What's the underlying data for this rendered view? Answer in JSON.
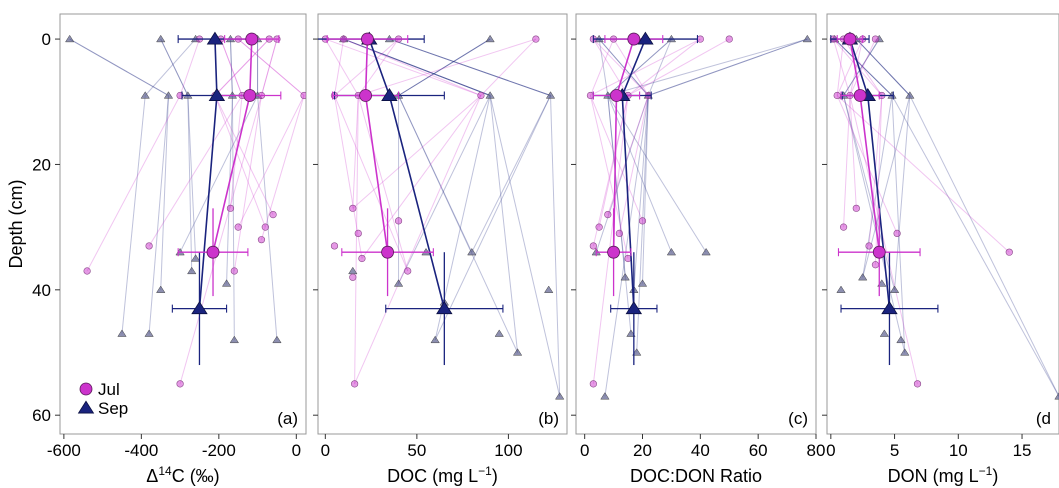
{
  "colors": {
    "jul": "#cc33cc",
    "sep": "#1a237e",
    "frame": "#999999"
  },
  "legend": {
    "position": "bottom-left",
    "items": [
      {
        "label": "Jul",
        "marker": "circle",
        "color": "#cc33cc"
      },
      {
        "label": "Sep",
        "marker": "triangle",
        "color": "#1a237e"
      }
    ]
  },
  "chart_data": [
    {
      "type": "scatter",
      "panel_label": "(a)",
      "xlabel_main": "Δ",
      "xlabel_sup": "14",
      "xlabel_rest": "C (‰)",
      "ylabel": "Depth (cm)",
      "xlim": [
        -610,
        25
      ],
      "ylim": [
        63,
        -4
      ],
      "xticks": [
        {
          "v": -600,
          "t": "-600"
        },
        {
          "v": -400,
          "t": "-400"
        },
        {
          "v": -200,
          "t": "-200"
        },
        {
          "v": 0,
          "t": "0"
        }
      ],
      "yticks": [
        {
          "v": 0,
          "t": "0"
        },
        {
          "v": 20,
          "t": "20"
        },
        {
          "v": 40,
          "t": "40"
        },
        {
          "v": 60,
          "t": "60"
        }
      ],
      "show_yticks": true,
      "jul_mean": [
        {
          "x": -115,
          "y": 0,
          "xerr": 70,
          "yerr": 0
        },
        {
          "x": -120,
          "y": 9,
          "xerr": 80,
          "yerr": 0
        },
        {
          "x": -215,
          "y": 34,
          "xerr": 90,
          "yerr": 7
        }
      ],
      "sep_mean": [
        {
          "x": -210,
          "y": 0,
          "xerr": 95,
          "yerr": 0
        },
        {
          "x": -205,
          "y": 9,
          "xerr": 90,
          "yerr": 0
        },
        {
          "x": -250,
          "y": 43,
          "xerr": 70,
          "yerr": 9
        }
      ],
      "jul_points": [
        {
          "x": -195,
          "y": 0
        },
        {
          "x": -150,
          "y": 0
        },
        {
          "x": -70,
          "y": 0
        },
        {
          "x": -50,
          "y": 0
        },
        {
          "x": -250,
          "y": 0
        },
        {
          "x": -300,
          "y": 9
        },
        {
          "x": -140,
          "y": 9
        },
        {
          "x": 20,
          "y": 9
        },
        {
          "x": -210,
          "y": 9
        },
        {
          "x": -90,
          "y": 9
        },
        {
          "x": -540,
          "y": 37
        },
        {
          "x": -380,
          "y": 33
        },
        {
          "x": -170,
          "y": 27
        },
        {
          "x": -150,
          "y": 30
        },
        {
          "x": -90,
          "y": 32
        },
        {
          "x": -80,
          "y": 30
        },
        {
          "x": -60,
          "y": 28
        },
        {
          "x": -300,
          "y": 55
        },
        {
          "x": -160,
          "y": 37
        }
      ],
      "sep_points": [
        {
          "x": -585,
          "y": 0
        },
        {
          "x": -350,
          "y": 0
        },
        {
          "x": -170,
          "y": 0
        },
        {
          "x": -100,
          "y": 0
        },
        {
          "x": -260,
          "y": 0
        },
        {
          "x": -390,
          "y": 9
        },
        {
          "x": -330,
          "y": 9
        },
        {
          "x": -280,
          "y": 9
        },
        {
          "x": -165,
          "y": 9
        },
        {
          "x": -100,
          "y": 9
        },
        {
          "x": -450,
          "y": 47
        },
        {
          "x": -380,
          "y": 47
        },
        {
          "x": -350,
          "y": 40
        },
        {
          "x": -270,
          "y": 37
        },
        {
          "x": -260,
          "y": 35
        },
        {
          "x": -180,
          "y": 39
        },
        {
          "x": -160,
          "y": 48
        },
        {
          "x": -50,
          "y": 48
        },
        {
          "x": -300,
          "y": 34
        }
      ]
    },
    {
      "type": "scatter",
      "panel_label": "(b)",
      "xlabel_main": "DOC (mg L",
      "xlabel_sup": "−1",
      "xlabel_rest": ")",
      "xlim": [
        -4,
        132
      ],
      "ylim": [
        63,
        -4
      ],
      "xticks": [
        {
          "v": 0,
          "t": "0"
        },
        {
          "v": 50,
          "t": "50"
        },
        {
          "v": 100,
          "t": "100"
        }
      ],
      "yticks": [
        {
          "v": 0,
          "t": ""
        },
        {
          "v": 20,
          "t": ""
        },
        {
          "v": 40,
          "t": ""
        },
        {
          "v": 60,
          "t": ""
        }
      ],
      "show_yticks": true,
      "jul_mean": [
        {
          "x": 23,
          "y": 0,
          "xerr": 22,
          "yerr": 0
        },
        {
          "x": 22,
          "y": 9,
          "xerr": 18,
          "yerr": 0
        },
        {
          "x": 34,
          "y": 34,
          "xerr": 25,
          "yerr": 7
        }
      ],
      "sep_mean": [
        {
          "x": 24,
          "y": 0,
          "xerr": 30,
          "yerr": 0
        },
        {
          "x": 35,
          "y": 9,
          "xerr": 30,
          "yerr": 0
        },
        {
          "x": 65,
          "y": 43,
          "xerr": 32,
          "yerr": 9
        }
      ],
      "jul_points": [
        {
          "x": 0,
          "y": 0
        },
        {
          "x": 10,
          "y": 0
        },
        {
          "x": 40,
          "y": 0
        },
        {
          "x": 115,
          "y": 0
        },
        {
          "x": 5,
          "y": 9
        },
        {
          "x": 18,
          "y": 9
        },
        {
          "x": 85,
          "y": 9
        },
        {
          "x": 5,
          "y": 33
        },
        {
          "x": 15,
          "y": 27
        },
        {
          "x": 18,
          "y": 31
        },
        {
          "x": 20,
          "y": 35
        },
        {
          "x": 40,
          "y": 29
        },
        {
          "x": 45,
          "y": 37
        },
        {
          "x": 15,
          "y": 38
        },
        {
          "x": 16,
          "y": 55
        }
      ],
      "sep_points": [
        {
          "x": 10,
          "y": 0
        },
        {
          "x": 35,
          "y": 0
        },
        {
          "x": 90,
          "y": 0
        },
        {
          "x": 40,
          "y": 9
        },
        {
          "x": 90,
          "y": 9
        },
        {
          "x": 123,
          "y": 9
        },
        {
          "x": 15,
          "y": 37
        },
        {
          "x": 40,
          "y": 39
        },
        {
          "x": 55,
          "y": 34
        },
        {
          "x": 60,
          "y": 48
        },
        {
          "x": 65,
          "y": 42
        },
        {
          "x": 80,
          "y": 34
        },
        {
          "x": 95,
          "y": 47
        },
        {
          "x": 105,
          "y": 50
        },
        {
          "x": 122,
          "y": 40
        },
        {
          "x": 128,
          "y": 57
        }
      ]
    },
    {
      "type": "scatter",
      "panel_label": "(c)",
      "xlabel_main": "DOC:DON Ratio",
      "xlabel_sup": "",
      "xlabel_rest": "",
      "xlim": [
        -3,
        80
      ],
      "ylim": [
        63,
        -4
      ],
      "xticks": [
        {
          "v": 0,
          "t": "0"
        },
        {
          "v": 20,
          "t": "20"
        },
        {
          "v": 40,
          "t": "40"
        },
        {
          "v": 60,
          "t": "60"
        },
        {
          "v": 80,
          "t": "80"
        }
      ],
      "yticks": [
        {
          "v": 0,
          "t": ""
        },
        {
          "v": 20,
          "t": ""
        },
        {
          "v": 40,
          "t": ""
        },
        {
          "v": 60,
          "t": ""
        }
      ],
      "show_yticks": true,
      "jul_mean": [
        {
          "x": 17,
          "y": 0,
          "xerr": 10,
          "yerr": 0
        },
        {
          "x": 11,
          "y": 9,
          "xerr": 8,
          "yerr": 0
        },
        {
          "x": 10,
          "y": 34,
          "xerr": 6,
          "yerr": 7
        }
      ],
      "sep_mean": [
        {
          "x": 21,
          "y": 0,
          "xerr": 18,
          "yerr": 0
        },
        {
          "x": 13,
          "y": 9,
          "xerr": 10,
          "yerr": 0
        },
        {
          "x": 17,
          "y": 43,
          "xerr": 8,
          "yerr": 9
        }
      ],
      "jul_points": [
        {
          "x": 3,
          "y": 0
        },
        {
          "x": 10,
          "y": 0
        },
        {
          "x": 40,
          "y": 0
        },
        {
          "x": 50,
          "y": 0
        },
        {
          "x": 2,
          "y": 9
        },
        {
          "x": 15,
          "y": 9
        },
        {
          "x": 22,
          "y": 9
        },
        {
          "x": 3,
          "y": 33
        },
        {
          "x": 5,
          "y": 30
        },
        {
          "x": 8,
          "y": 28
        },
        {
          "x": 12,
          "y": 31
        },
        {
          "x": 15,
          "y": 35
        },
        {
          "x": 20,
          "y": 29
        },
        {
          "x": 3,
          "y": 55
        }
      ],
      "sep_points": [
        {
          "x": 5,
          "y": 0
        },
        {
          "x": 30,
          "y": 0
        },
        {
          "x": 77,
          "y": 0
        },
        {
          "x": 8,
          "y": 9
        },
        {
          "x": 22,
          "y": 9
        },
        {
          "x": 4,
          "y": 34
        },
        {
          "x": 7,
          "y": 57
        },
        {
          "x": 14,
          "y": 38
        },
        {
          "x": 16,
          "y": 47
        },
        {
          "x": 17,
          "y": 40
        },
        {
          "x": 20,
          "y": 39
        },
        {
          "x": 30,
          "y": 34
        },
        {
          "x": 42,
          "y": 34
        },
        {
          "x": 18,
          "y": 50
        }
      ]
    },
    {
      "type": "scatter",
      "panel_label": "(d",
      "xlabel_main": "DON (mg L",
      "xlabel_sup": "−1",
      "xlabel_rest": ")",
      "xlim": [
        -0.3,
        17.9
      ],
      "ylim": [
        63,
        -4
      ],
      "xticks": [
        {
          "v": 0,
          "t": "0"
        },
        {
          "v": 5,
          "t": "5"
        },
        {
          "v": 10,
          "t": "10"
        },
        {
          "v": 15,
          "t": "15"
        }
      ],
      "yticks": [
        {
          "v": 0,
          "t": ""
        },
        {
          "v": 20,
          "t": ""
        },
        {
          "v": 40,
          "t": ""
        },
        {
          "v": 60,
          "t": ""
        }
      ],
      "show_yticks": true,
      "jul_mean": [
        {
          "x": 1.5,
          "y": 0,
          "xerr": 1.0,
          "yerr": 0
        },
        {
          "x": 2.3,
          "y": 9,
          "xerr": 1.5,
          "yerr": 0
        },
        {
          "x": 3.8,
          "y": 34,
          "xerr": 3.2,
          "yerr": 7
        }
      ],
      "sep_mean": [
        {
          "x": 1.5,
          "y": 0,
          "xerr": 1.5,
          "yerr": 0
        },
        {
          "x": 2.9,
          "y": 9,
          "xerr": 2.0,
          "yerr": 0
        },
        {
          "x": 4.6,
          "y": 43,
          "xerr": 3.8,
          "yerr": 9
        }
      ],
      "jul_points": [
        {
          "x": 0.2,
          "y": 0
        },
        {
          "x": 1.0,
          "y": 0
        },
        {
          "x": 2.5,
          "y": 0
        },
        {
          "x": 3.5,
          "y": 0
        },
        {
          "x": 0.5,
          "y": 9
        },
        {
          "x": 1.5,
          "y": 9
        },
        {
          "x": 4.0,
          "y": 9
        },
        {
          "x": 1.0,
          "y": 30
        },
        {
          "x": 2.0,
          "y": 27
        },
        {
          "x": 3.0,
          "y": 33
        },
        {
          "x": 3.5,
          "y": 36
        },
        {
          "x": 5.2,
          "y": 31
        },
        {
          "x": 14.0,
          "y": 34
        },
        {
          "x": 6.8,
          "y": 55
        }
      ],
      "sep_points": [
        {
          "x": 0.3,
          "y": 0
        },
        {
          "x": 2.0,
          "y": 0
        },
        {
          "x": 3.8,
          "y": 0
        },
        {
          "x": 1.0,
          "y": 9
        },
        {
          "x": 4.8,
          "y": 9
        },
        {
          "x": 6.2,
          "y": 9
        },
        {
          "x": 0.8,
          "y": 40
        },
        {
          "x": 2.5,
          "y": 38
        },
        {
          "x": 4.2,
          "y": 47
        },
        {
          "x": 5.0,
          "y": 40
        },
        {
          "x": 5.5,
          "y": 48
        },
        {
          "x": 5.8,
          "y": 50
        },
        {
          "x": 4.0,
          "y": 39
        },
        {
          "x": 17.9,
          "y": 57
        }
      ]
    }
  ]
}
